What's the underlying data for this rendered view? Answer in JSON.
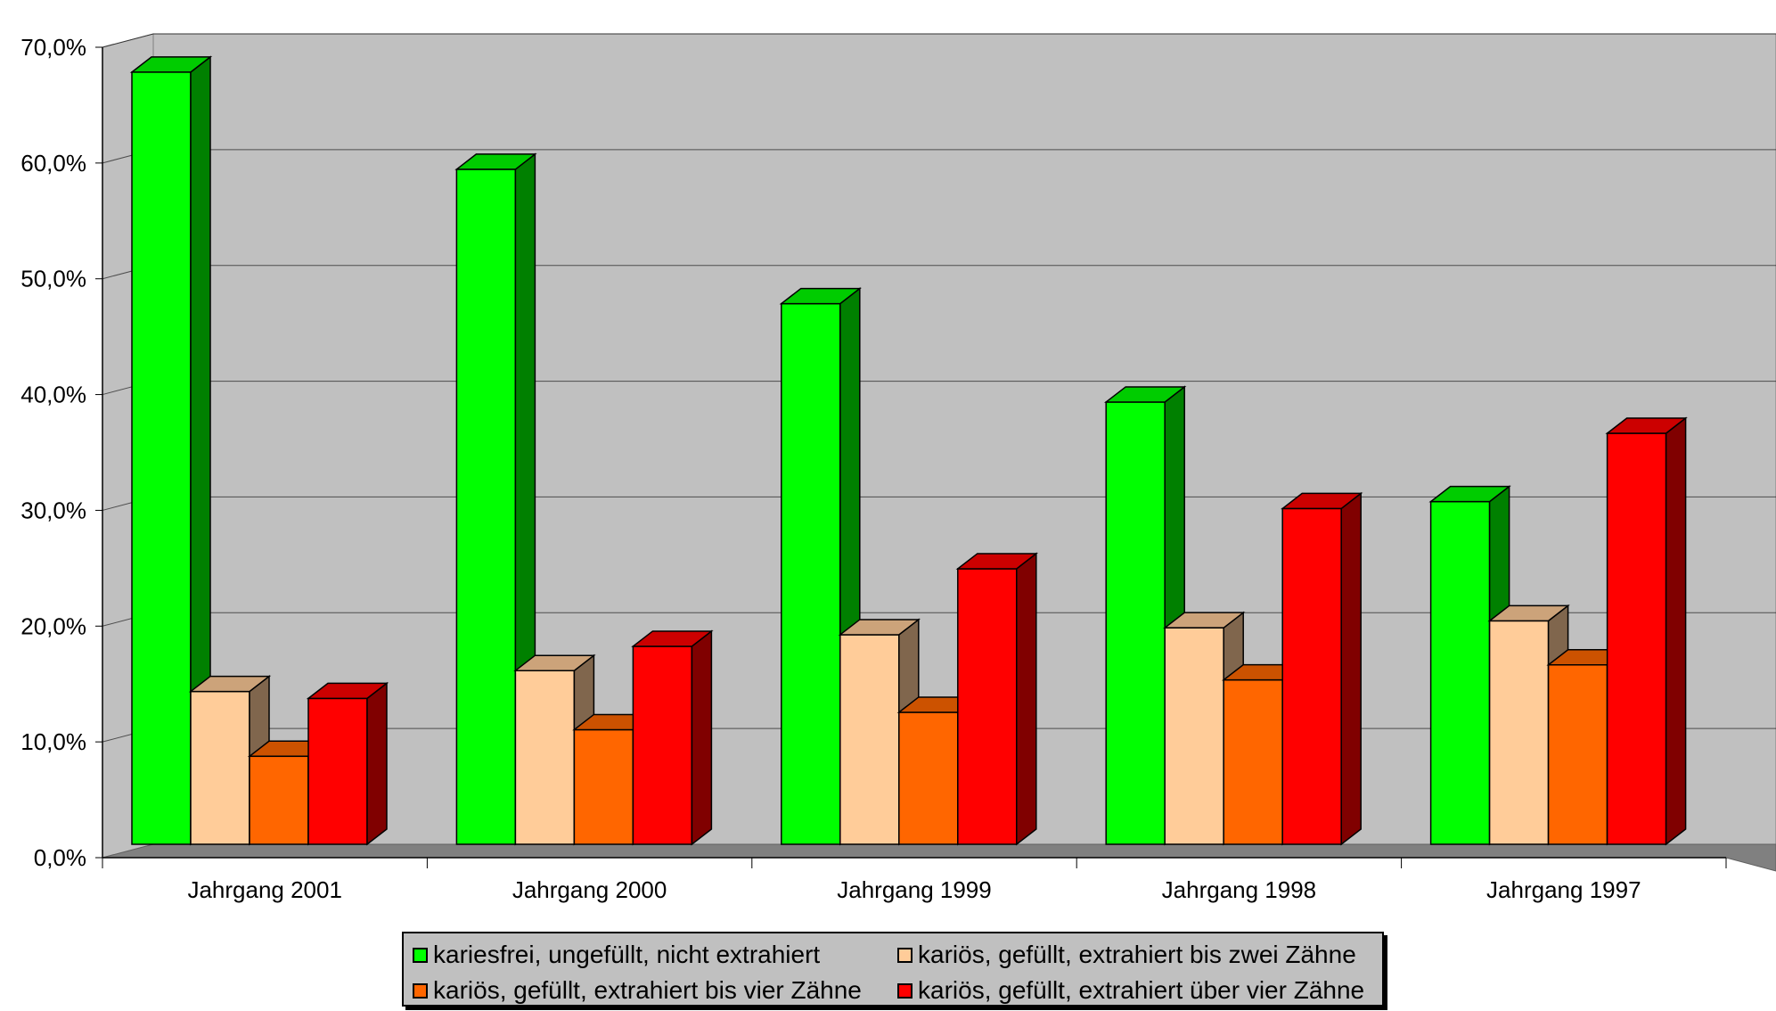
{
  "chart_data": {
    "type": "bar",
    "title": "",
    "xlabel": "",
    "ylabel": "",
    "ylim": [
      0,
      70
    ],
    "yticks": [
      "0,0%",
      "10,0%",
      "20,0%",
      "30,0%",
      "40,0%",
      "50,0%",
      "60,0%",
      "70,0%"
    ],
    "grid": true,
    "three_d": true,
    "legend_position": "bottom",
    "categories": [
      "Jahrgang 2001",
      "Jahrgang 2000",
      "Jahrgang 1999",
      "Jahrgang 1998",
      "Jahrgang 1997"
    ],
    "series": [
      {
        "name": "kariesfrei, ungefüllt,  nicht extrahiert",
        "color": "#00ff00",
        "values": [
          66.7,
          58.3,
          46.7,
          38.2,
          29.6
        ]
      },
      {
        "name": "kariös, gefüllt, extrahiert bis zwei Zähne",
        "color": "#ffcc99",
        "values": [
          13.2,
          15.0,
          18.1,
          18.7,
          19.3
        ]
      },
      {
        "name": "kariös, gefüllt, extrahiert bis vier Zähne",
        "color": "#ff6600",
        "values": [
          7.6,
          9.9,
          11.4,
          14.2,
          15.5
        ]
      },
      {
        "name": "kariös, gefüllt, extrahiert über vier Zähne",
        "color": "#ff0000",
        "values": [
          12.6,
          17.1,
          23.8,
          29.0,
          35.5
        ]
      }
    ]
  }
}
